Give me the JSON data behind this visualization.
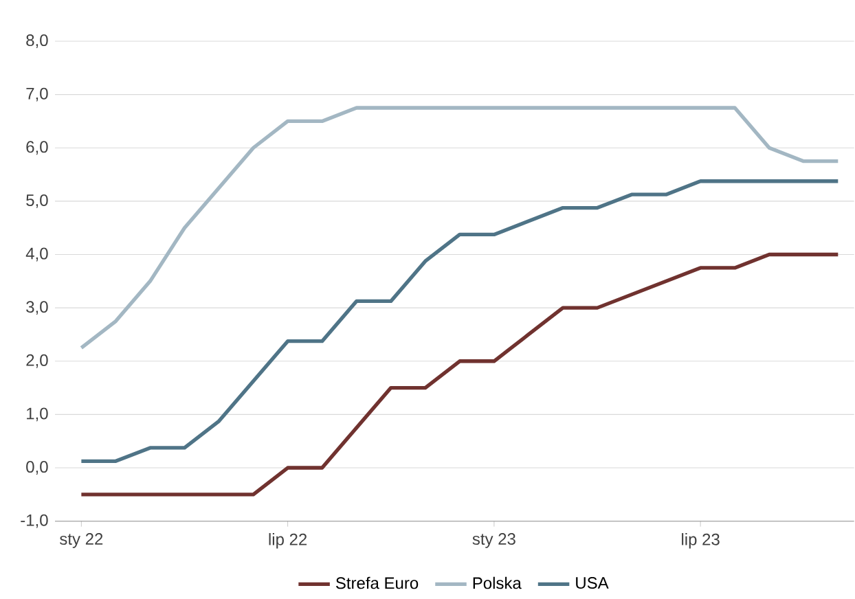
{
  "chart_data": {
    "type": "line",
    "x": [
      "2022-01",
      "2022-02",
      "2022-03",
      "2022-04",
      "2022-05",
      "2022-06",
      "2022-07",
      "2022-08",
      "2022-09",
      "2022-10",
      "2022-11",
      "2022-12",
      "2023-01",
      "2023-02",
      "2023-03",
      "2023-04",
      "2023-05",
      "2023-06",
      "2023-07",
      "2023-08",
      "2023-09",
      "2023-10",
      "2023-11"
    ],
    "series": [
      {
        "name": "Strefa Euro",
        "color": "#70322f",
        "values": [
          -0.5,
          -0.5,
          -0.5,
          -0.5,
          -0.5,
          -0.5,
          0.0,
          0.0,
          0.75,
          1.5,
          1.5,
          2.0,
          2.0,
          2.5,
          3.0,
          3.0,
          3.25,
          3.5,
          3.75,
          3.75,
          4.0,
          4.0,
          4.0
        ]
      },
      {
        "name": "Polska",
        "color": "#a3b7c3",
        "values": [
          2.25,
          2.75,
          3.5,
          4.5,
          5.25,
          6.0,
          6.5,
          6.5,
          6.75,
          6.75,
          6.75,
          6.75,
          6.75,
          6.75,
          6.75,
          6.75,
          6.75,
          6.75,
          6.75,
          6.75,
          6.0,
          5.75,
          5.75
        ]
      },
      {
        "name": "USA",
        "color": "#4f7487",
        "values": [
          0.125,
          0.125,
          0.375,
          0.375,
          0.875,
          1.625,
          2.375,
          2.375,
          3.125,
          3.125,
          3.875,
          4.375,
          4.375,
          4.625,
          4.875,
          4.875,
          5.125,
          5.125,
          5.375,
          5.375,
          5.375,
          5.375,
          5.375
        ]
      }
    ],
    "xlim": [
      "2021-12-08",
      "2023-11-15"
    ],
    "xticks": [
      {
        "value": "2022-01",
        "label": "sty 22"
      },
      {
        "value": "2022-07",
        "label": "lip 22"
      },
      {
        "value": "2023-01",
        "label": "sty 23"
      },
      {
        "value": "2023-07",
        "label": "lip 23"
      }
    ],
    "ylim": [
      -1,
      8
    ],
    "yticks": [
      {
        "value": -1,
        "label": "-1,0"
      },
      {
        "value": 0,
        "label": "0,0"
      },
      {
        "value": 1,
        "label": "1,0"
      },
      {
        "value": 2,
        "label": "2,0"
      },
      {
        "value": 3,
        "label": "3,0"
      },
      {
        "value": 4,
        "label": "4,0"
      },
      {
        "value": 5,
        "label": "5,0"
      },
      {
        "value": 6,
        "label": "6,0"
      },
      {
        "value": 7,
        "label": "7,0"
      },
      {
        "value": 8,
        "label": "8,0"
      }
    ],
    "grid": "y",
    "legend": "bottom",
    "marker": "none",
    "line_style": "solid"
  }
}
